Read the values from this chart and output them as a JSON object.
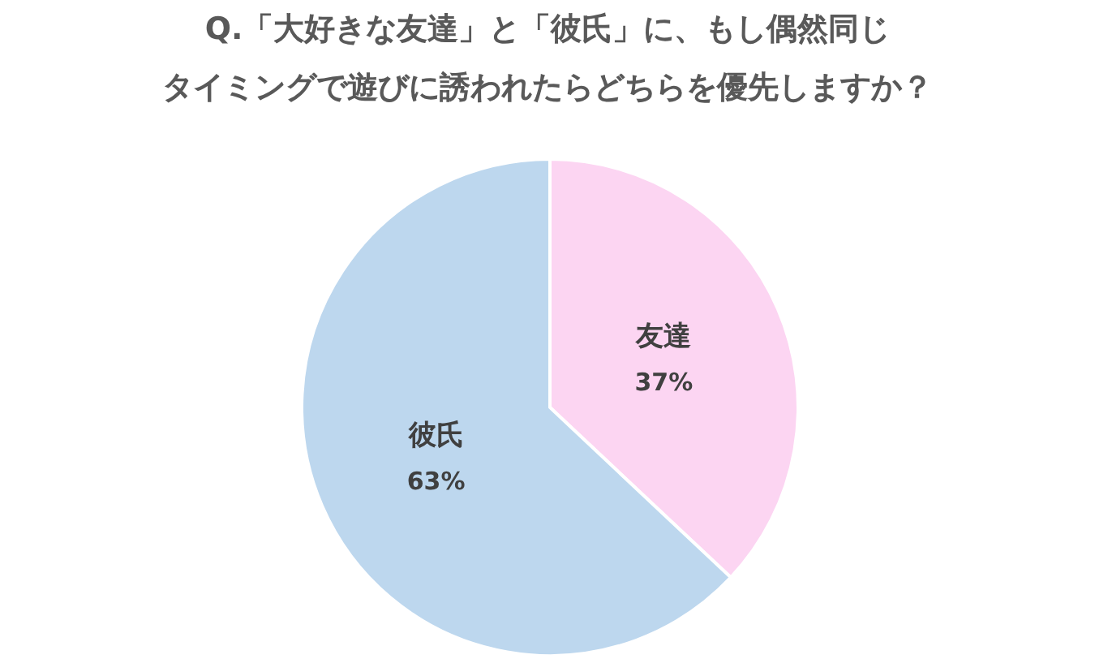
{
  "chart_data": {
    "type": "pie",
    "title": "Q.「大好きな友達」と「彼氏」に、もし偶然同じタイミングで遊びに誘われたらどちらを優先しますか？",
    "categories": [
      "友達",
      "彼氏"
    ],
    "values": [
      37,
      63
    ],
    "colors": [
      "#fcd5f2",
      "#bdd7ee"
    ],
    "value_labels": [
      "37%",
      "63%"
    ]
  }
}
